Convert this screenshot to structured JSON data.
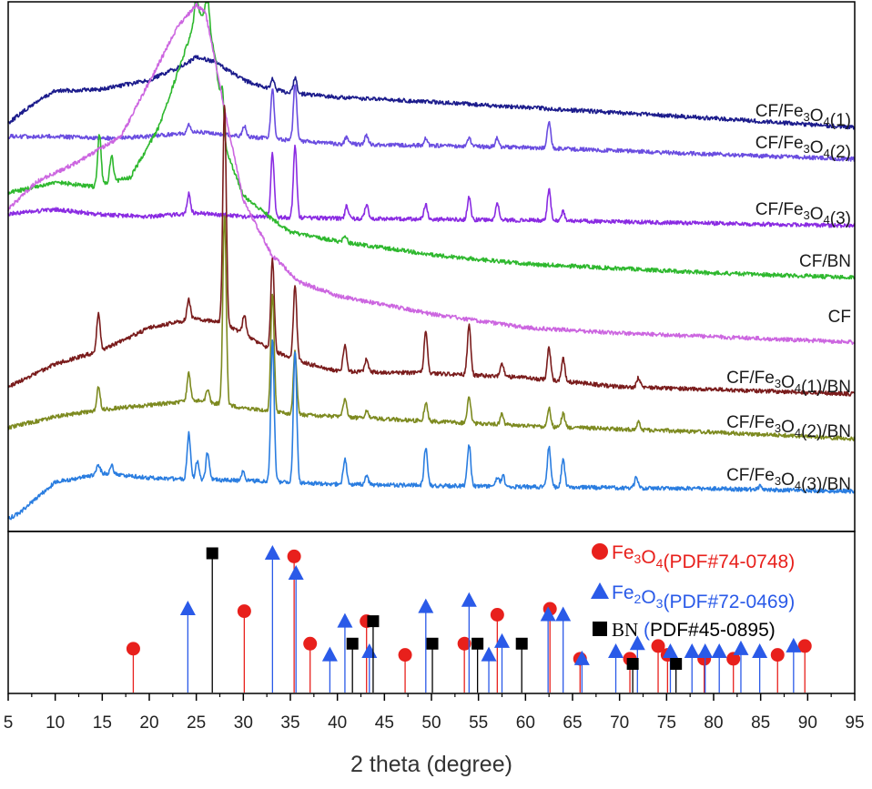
{
  "chart_data": {
    "type": "line",
    "xlabel": "2 theta (degree)",
    "xlim": [
      5,
      95
    ],
    "x_ticks": [
      "5",
      "10",
      "15",
      "20",
      "25",
      "30",
      "35",
      "40",
      "45",
      "50",
      "55",
      "60",
      "65",
      "70",
      "75",
      "80",
      "85",
      "90",
      "95"
    ],
    "grid": false,
    "upper_panel": {
      "label_location": "right",
      "series": [
        {
          "name_parts": [
            [
              "CF/Fe",
              "n"
            ],
            [
              "3",
              "sub"
            ],
            [
              "O",
              "n"
            ],
            [
              "4",
              "sub"
            ],
            [
              "(1)",
              "n"
            ]
          ],
          "color": "#1c1c8c",
          "points": [
            [
              5,
              135
            ],
            [
              8,
              112
            ],
            [
              10,
              100
            ],
            [
              15,
              98
            ],
            [
              20,
              88
            ],
            [
              24,
              70
            ],
            [
              25,
              62
            ],
            [
              27,
              68
            ],
            [
              30,
              88
            ],
            [
              33,
              98
            ],
            [
              35,
              102
            ],
            [
              40,
              107
            ],
            [
              50,
              112
            ],
            [
              60,
              118
            ],
            [
              70,
              124
            ],
            [
              80,
              130
            ],
            [
              95,
              140
            ]
          ],
          "peaks": [
            [
              33.1,
              12
            ],
            [
              35.5,
              18
            ]
          ]
        },
        {
          "name_parts": [
            [
              "CF/Fe",
              "n"
            ],
            [
              "3",
              "sub"
            ],
            [
              "O",
              "n"
            ],
            [
              "4",
              "sub"
            ],
            [
              "(2)",
              "n"
            ]
          ],
          "color": "#6a4de0",
          "points": [
            [
              5,
              150
            ],
            [
              10,
              150
            ],
            [
              15,
              152
            ],
            [
              20,
              150
            ],
            [
              25,
              145
            ],
            [
              30,
              150
            ],
            [
              40,
              158
            ],
            [
              60,
              162
            ],
            [
              95,
              175
            ]
          ],
          "peaks": [
            [
              24.2,
              10
            ],
            [
              30.1,
              12
            ],
            [
              33.1,
              55
            ],
            [
              35.5,
              62
            ],
            [
              41,
              8
            ],
            [
              43.1,
              10
            ],
            [
              49.4,
              8
            ],
            [
              54,
              10
            ],
            [
              57,
              10
            ],
            [
              62.5,
              30
            ]
          ]
        },
        {
          "name_parts": [
            [
              "CF/Fe",
              "n"
            ],
            [
              "3",
              "sub"
            ],
            [
              "O",
              "n"
            ],
            [
              "4",
              "sub"
            ],
            [
              "(3)",
              "n"
            ]
          ],
          "color": "#8a2be2",
          "points": [
            [
              5,
              235
            ],
            [
              10,
              230
            ],
            [
              15,
              236
            ],
            [
              20,
              238
            ],
            [
              25,
              234
            ],
            [
              30,
              238
            ],
            [
              40,
              240
            ],
            [
              60,
              242
            ],
            [
              95,
              248
            ]
          ],
          "peaks": [
            [
              24.2,
              22
            ],
            [
              33.1,
              70
            ],
            [
              35.5,
              78
            ],
            [
              41,
              14
            ],
            [
              43.1,
              16
            ],
            [
              49.4,
              16
            ],
            [
              54,
              24
            ],
            [
              57,
              18
            ],
            [
              62.5,
              34
            ],
            [
              64,
              10
            ]
          ]
        },
        {
          "name_parts": [
            [
              "CF/BN",
              "n"
            ]
          ],
          "color": "#2eb82e",
          "points": [
            [
              5,
              212
            ],
            [
              8,
              205
            ],
            [
              10,
              200
            ],
            [
              14,
              205
            ],
            [
              18,
              195
            ],
            [
              21,
              140
            ],
            [
              23,
              80
            ],
            [
              25,
              20
            ],
            [
              26,
              15
            ],
            [
              27,
              60
            ],
            [
              28,
              160
            ],
            [
              30,
              215
            ],
            [
              33,
              240
            ],
            [
              35,
              255
            ],
            [
              40,
              265
            ],
            [
              50,
              280
            ],
            [
              60,
              290
            ],
            [
              70,
              295
            ],
            [
              80,
              300
            ],
            [
              95,
              305
            ]
          ],
          "peaks": [
            [
              14.7,
              55
            ],
            [
              16,
              30
            ],
            [
              25,
              30
            ],
            [
              26.2,
              30
            ],
            [
              27.8,
              40
            ],
            [
              40.8,
              8
            ]
          ]
        },
        {
          "name_parts": [
            [
              "CF",
              "n"
            ]
          ],
          "color": "#cc66e0",
          "points": [
            [
              5,
              230
            ],
            [
              8,
              200
            ],
            [
              12,
              180
            ],
            [
              17,
              150
            ],
            [
              20,
              90
            ],
            [
              23,
              30
            ],
            [
              25,
              5
            ],
            [
              26,
              15
            ],
            [
              28,
              120
            ],
            [
              30,
              220
            ],
            [
              33,
              280
            ],
            [
              36,
              310
            ],
            [
              40,
              325
            ],
            [
              50,
              345
            ],
            [
              60,
              360
            ],
            [
              70,
              366
            ],
            [
              80,
              370
            ],
            [
              95,
              376
            ]
          ]
        },
        {
          "name_parts": [
            [
              "CF/Fe",
              "n"
            ],
            [
              "3",
              "sub"
            ],
            [
              "O",
              "n"
            ],
            [
              "4",
              "sub"
            ],
            [
              "(1)/BN",
              "n"
            ]
          ],
          "color": "#7a1c1c",
          "points": [
            [
              5,
              425
            ],
            [
              10,
              400
            ],
            [
              15,
              385
            ],
            [
              20,
              360
            ],
            [
              25,
              350
            ],
            [
              28,
              355
            ],
            [
              33,
              385
            ],
            [
              37,
              400
            ],
            [
              40,
              408
            ],
            [
              50,
              410
            ],
            [
              60,
              415
            ],
            [
              70,
              425
            ],
            [
              80,
              428
            ],
            [
              95,
              433
            ]
          ],
          "peaks": [
            [
              14.6,
              42
            ],
            [
              24.2,
              22
            ],
            [
              28,
              240
            ],
            [
              30.1,
              22
            ],
            [
              33.1,
              100
            ],
            [
              35.5,
              80
            ],
            [
              40.8,
              30
            ],
            [
              43.1,
              15
            ],
            [
              49.4,
              45
            ],
            [
              54,
              55
            ],
            [
              57.5,
              15
            ],
            [
              62.5,
              35
            ],
            [
              64,
              25
            ],
            [
              72,
              10
            ]
          ]
        },
        {
          "name_parts": [
            [
              "CF/Fe",
              "n"
            ],
            [
              "3",
              "sub"
            ],
            [
              "O",
              "n"
            ],
            [
              "4",
              "sub"
            ],
            [
              "(2)/BN",
              "n"
            ]
          ],
          "color": "#7d8a20",
          "points": [
            [
              5,
              470
            ],
            [
              10,
              458
            ],
            [
              15,
              450
            ],
            [
              20,
              445
            ],
            [
              25,
              440
            ],
            [
              30,
              448
            ],
            [
              35,
              455
            ],
            [
              40,
              458
            ],
            [
              60,
              468
            ],
            [
              80,
              475
            ],
            [
              95,
              482
            ]
          ],
          "peaks": [
            [
              14.6,
              25
            ],
            [
              24.2,
              30
            ],
            [
              26.2,
              15
            ],
            [
              28,
              210
            ],
            [
              33.1,
              130
            ],
            [
              35.5,
              70
            ],
            [
              40.8,
              20
            ],
            [
              43.1,
              8
            ],
            [
              49.4,
              20
            ],
            [
              54,
              28
            ],
            [
              57.5,
              12
            ],
            [
              62.5,
              20
            ],
            [
              64,
              15
            ],
            [
              72,
              8
            ]
          ]
        },
        {
          "name_parts": [
            [
              "CF/Fe",
              "n"
            ],
            [
              "3",
              "sub"
            ],
            [
              "O",
              "n"
            ],
            [
              "4",
              "sub"
            ],
            [
              "(3)/BN",
              "n"
            ]
          ],
          "color": "#2a7de0",
          "points": [
            [
              5,
              570
            ],
            [
              6,
              565
            ],
            [
              10,
              530
            ],
            [
              15,
              520
            ],
            [
              20,
              525
            ],
            [
              25,
              527
            ],
            [
              30,
              528
            ],
            [
              40,
              532
            ],
            [
              60,
              535
            ],
            [
              80,
              537
            ],
            [
              95,
              540
            ]
          ],
          "peaks": [
            [
              14.6,
              10
            ],
            [
              16,
              10
            ],
            [
              24.2,
              50
            ],
            [
              25.1,
              20
            ],
            [
              26.2,
              30
            ],
            [
              30,
              10
            ],
            [
              33.1,
              155
            ],
            [
              35.5,
              145
            ],
            [
              40.8,
              28
            ],
            [
              43.1,
              10
            ],
            [
              49.4,
              42
            ],
            [
              54,
              45
            ],
            [
              57,
              10
            ],
            [
              57.6,
              12
            ],
            [
              62.5,
              45
            ],
            [
              64,
              30
            ],
            [
              71.8,
              12
            ],
            [
              85,
              4
            ]
          ]
        }
      ]
    },
    "lower_panel": {
      "type": "stem",
      "legend_location": "top-right",
      "series": [
        {
          "name_parts": [
            [
              "Fe",
              "n"
            ],
            [
              "3",
              "sub"
            ],
            [
              "O",
              "n"
            ],
            [
              "4",
              "sub"
            ],
            [
              "(PDF#74-0748)",
              "n"
            ]
          ],
          "marker": "circle",
          "color": "#e8201c",
          "stem_color": "#e8201c",
          "x": [
            18.3,
            30.1,
            35.4,
            37.1,
            43.1,
            47.2,
            53.5,
            57.0,
            62.6,
            65.8,
            71.1,
            74.1,
            75.1,
            79.0,
            82.1,
            86.8,
            89.7
          ],
          "intensity": [
            5,
            28,
            95,
            7,
            20,
            3,
            7,
            25,
            30,
            2,
            2,
            6,
            3,
            2,
            2,
            3,
            6
          ]
        },
        {
          "name_parts": [
            [
              "Fe",
              "n"
            ],
            [
              "2",
              "sub"
            ],
            [
              "O",
              "n"
            ],
            [
              "3",
              "sub"
            ],
            [
              "(PDF#72-0469)",
              "n"
            ]
          ],
          "marker": "triangle",
          "color": "#2a5ae8",
          "stem_color": "#2a5ae8",
          "x": [
            24.1,
            33.1,
            35.6,
            39.2,
            40.8,
            43.4,
            49.4,
            54.0,
            56.1,
            57.5,
            62.4,
            64.0,
            66.0,
            69.6,
            71.9,
            75.4,
            77.7,
            79.1,
            80.6,
            82.9,
            84.9,
            88.5
          ],
          "intensity": [
            30,
            100,
            70,
            3,
            20,
            4,
            32,
            38,
            3,
            8,
            25,
            25,
            2,
            4,
            7,
            4,
            4,
            4,
            4,
            5,
            4,
            6
          ]
        },
        {
          "name_parts": [
            [
              "BN",
              "serif"
            ],
            [
              " (",
              "n"
            ],
            [
              "PDF#45-0895)",
              "n"
            ]
          ],
          "marker": "square",
          "color": "#000000",
          "stem_color": "#000000",
          "x": [
            26.7,
            41.6,
            43.8,
            50.1,
            54.9,
            59.6,
            71.4,
            76.0
          ],
          "intensity": [
            100,
            7,
            20,
            7,
            7,
            7,
            1,
            1
          ]
        }
      ]
    }
  }
}
